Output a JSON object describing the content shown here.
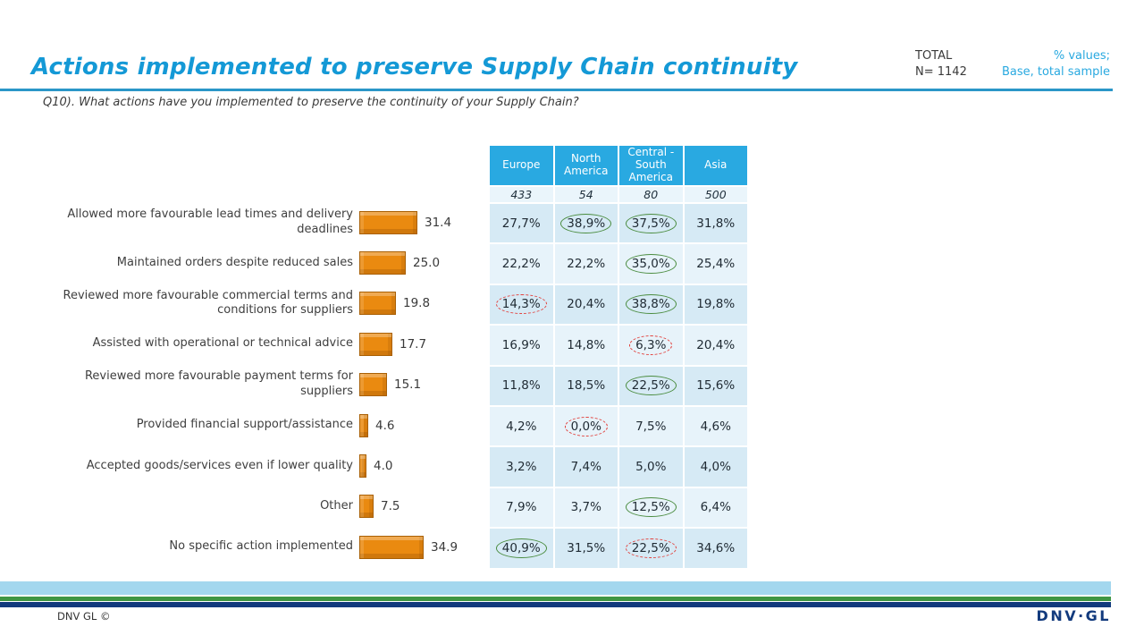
{
  "header": {
    "title": "Actions implemented to preserve Supply Chain continuity",
    "total_label": "TOTAL",
    "total_n": "N= 1142",
    "values_note_line1": "% values;",
    "values_note_line2": "Base, total sample",
    "question": "Q10).  What actions have you implemented  to preserve the continuity of your Supply  Chain?"
  },
  "chart_data": {
    "type": "bar",
    "orientation": "horizontal",
    "title": "",
    "xlabel": "",
    "ylabel": "",
    "xlim": [
      0,
      40
    ],
    "grid": false,
    "bar_color": "#EA8A10",
    "categories": [
      "Allowed more favourable lead times and delivery deadlines",
      "Maintained orders despite reduced sales",
      "Reviewed more favourable commercial terms and conditions for suppliers",
      "Assisted with operational or technical advice",
      "Reviewed more favourable payment terms for suppliers",
      "Provided financial support/assistance",
      "Accepted goods/services even if lower quality",
      "Other",
      "No specific action implemented"
    ],
    "values": [
      31.4,
      25.0,
      19.8,
      17.7,
      15.1,
      4.6,
      4.0,
      7.5,
      34.9
    ],
    "value_labels": [
      "31.4",
      "25.0",
      "19.8",
      "17.7",
      "15.1",
      "4.6",
      "4.0",
      "7.5",
      "34.9"
    ]
  },
  "table": {
    "columns": [
      "Europe",
      "North America",
      "Central - South America",
      "Asia"
    ],
    "base_row": [
      "433",
      "54",
      "80",
      "500"
    ],
    "rows": [
      {
        "cells": [
          {
            "value": "27,7%",
            "circle": "none"
          },
          {
            "value": "38,9%",
            "circle": "green"
          },
          {
            "value": "37,5%",
            "circle": "green"
          },
          {
            "value": "31,8%",
            "circle": "none"
          }
        ]
      },
      {
        "cells": [
          {
            "value": "22,2%",
            "circle": "none"
          },
          {
            "value": "22,2%",
            "circle": "none"
          },
          {
            "value": "35,0%",
            "circle": "green"
          },
          {
            "value": "25,4%",
            "circle": "none"
          }
        ]
      },
      {
        "cells": [
          {
            "value": "14,3%",
            "circle": "red"
          },
          {
            "value": "20,4%",
            "circle": "none"
          },
          {
            "value": "38,8%",
            "circle": "green"
          },
          {
            "value": "19,8%",
            "circle": "none"
          }
        ]
      },
      {
        "cells": [
          {
            "value": "16,9%",
            "circle": "none"
          },
          {
            "value": "14,8%",
            "circle": "none"
          },
          {
            "value": "6,3%",
            "circle": "red"
          },
          {
            "value": "20,4%",
            "circle": "none"
          }
        ]
      },
      {
        "cells": [
          {
            "value": "11,8%",
            "circle": "none"
          },
          {
            "value": "18,5%",
            "circle": "none"
          },
          {
            "value": "22,5%",
            "circle": "green"
          },
          {
            "value": "15,6%",
            "circle": "none"
          }
        ]
      },
      {
        "cells": [
          {
            "value": "4,2%",
            "circle": "none"
          },
          {
            "value": "0,0%",
            "circle": "red"
          },
          {
            "value": "7,5%",
            "circle": "none"
          },
          {
            "value": "4,6%",
            "circle": "none"
          }
        ]
      },
      {
        "cells": [
          {
            "value": "3,2%",
            "circle": "none"
          },
          {
            "value": "7,4%",
            "circle": "none"
          },
          {
            "value": "5,0%",
            "circle": "none"
          },
          {
            "value": "4,0%",
            "circle": "none"
          }
        ]
      },
      {
        "cells": [
          {
            "value": "7,9%",
            "circle": "none"
          },
          {
            "value": "3,7%",
            "circle": "none"
          },
          {
            "value": "12,5%",
            "circle": "green"
          },
          {
            "value": "6,4%",
            "circle": "none"
          }
        ]
      },
      {
        "cells": [
          {
            "value": "40,9%",
            "circle": "green"
          },
          {
            "value": "31,5%",
            "circle": "none"
          },
          {
            "value": "22,5%",
            "circle": "red"
          },
          {
            "value": "34,6%",
            "circle": "none"
          }
        ]
      }
    ]
  },
  "footer": {
    "copyright": "DNV GL ©",
    "logo_text": "DNV·GL"
  },
  "colors": {
    "title_blue": "#1499D6",
    "rule_blue": "#2B97C8",
    "table_header_blue": "#29A9E1",
    "row_light": "#E7F3FA",
    "row_dark": "#D6EAF5",
    "bar_orange": "#EA8A10",
    "circle_green": "#4A8C3F",
    "circle_red": "#E2403C",
    "stripe_lightblue": "#A3D7EE",
    "stripe_green": "#3F9643",
    "stripe_navy": "#123A7D"
  }
}
